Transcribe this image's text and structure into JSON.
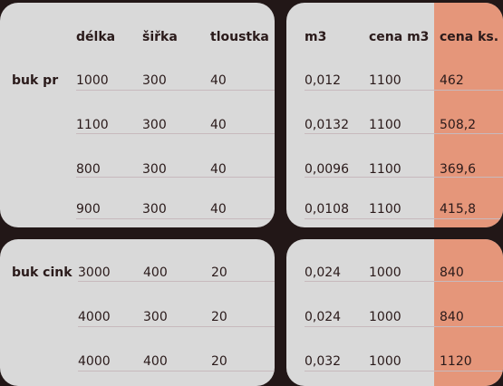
{
  "left_header": [
    "délka",
    "šiřka",
    "tloustka"
  ],
  "right_header": [
    "m3",
    "cena m3",
    "cena ks."
  ],
  "group1": {
    "label": "buk pr",
    "rows": [
      {
        "delka": "1000",
        "sirka": "300",
        "tloustka": "40",
        "m3": "0,012",
        "cena_m3": "1100",
        "cena_ks": "462"
      },
      {
        "delka": "1100",
        "sirka": "300",
        "tloustka": "40",
        "m3": "0,0132",
        "cena_m3": "1100",
        "cena_ks": "508,2"
      },
      {
        "delka": "800",
        "sirka": "300",
        "tloustka": "40",
        "m3": "0,0096",
        "cena_m3": "1100",
        "cena_ks": "369,6"
      },
      {
        "delka": "900",
        "sirka": "300",
        "tloustka": "40",
        "m3": "0,0108",
        "cena_m3": "1100",
        "cena_ks": "415,8"
      }
    ]
  },
  "group2": {
    "label": "buk cink",
    "rows": [
      {
        "delka": "3000",
        "sirka": "400",
        "tloustka": "20",
        "m3": "0,024",
        "cena_m3": "1000",
        "cena_ks": "840"
      },
      {
        "delka": "4000",
        "sirka": "300",
        "tloustka": "20",
        "m3": "0,024",
        "cena_m3": "1000",
        "cena_ks": "840"
      },
      {
        "delka": "4000",
        "sirka": "400",
        "tloustka": "20",
        "m3": "0,032",
        "cena_m3": "1000",
        "cena_ks": "1120"
      }
    ]
  },
  "colors": {
    "panel": "#d9d9d9",
    "accent": "#e5967a",
    "background": "#221717",
    "text": "#2a1a1a"
  }
}
